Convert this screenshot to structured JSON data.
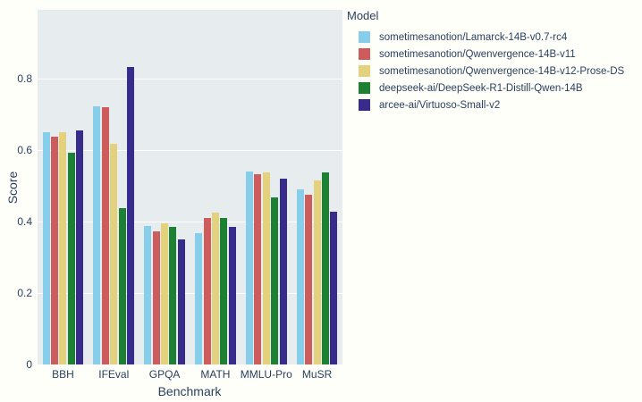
{
  "chart_data": {
    "type": "bar",
    "title": "",
    "xlabel": "Benchmark",
    "ylabel": "Score",
    "legend_title": "Model",
    "legend_position": "right-top",
    "grid": true,
    "categories": [
      "BBH",
      "IFEval",
      "GPQA",
      "MATH",
      "MMLU-Pro",
      "MuSR"
    ],
    "series": [
      {
        "name": "sometimesanotion/Lamarck-14B-v0.7-rc4",
        "color": "#87CEEB",
        "values": [
          0.65,
          0.722,
          0.388,
          0.367,
          0.541,
          0.491
        ]
      },
      {
        "name": "sometimesanotion/Qwenvergence-14B-v11",
        "color": "#CD5C5C",
        "values": [
          0.638,
          0.72,
          0.373,
          0.409,
          0.533,
          0.474
        ]
      },
      {
        "name": "sometimesanotion/Qwenvergence-14B-v12-Prose-DS",
        "color": "#E3D17E",
        "values": [
          0.651,
          0.618,
          0.396,
          0.424,
          0.538,
          0.515
        ]
      },
      {
        "name": "deepseek-ai/DeepSeek-R1-Distill-Qwen-14B",
        "color": "#1E8033",
        "values": [
          0.592,
          0.438,
          0.386,
          0.409,
          0.468,
          0.537
        ]
      },
      {
        "name": "arcee-ai/Virtuoso-Small-v2",
        "color": "#372C8C",
        "values": [
          0.656,
          0.832,
          0.351,
          0.384,
          0.52,
          0.428
        ]
      }
    ],
    "yticks": [
      0,
      0.2,
      0.4,
      0.6,
      0.8
    ],
    "ytick_labels": [
      "0",
      "0.2",
      "0.4",
      "0.6",
      "0.8"
    ],
    "ylim": [
      0,
      0.9925
    ],
    "plot_bg": "#E7EDEF",
    "page_bg": "#FFFFF9",
    "grid_color": "#FFFFFF",
    "text_color": "#2A3F5F"
  }
}
